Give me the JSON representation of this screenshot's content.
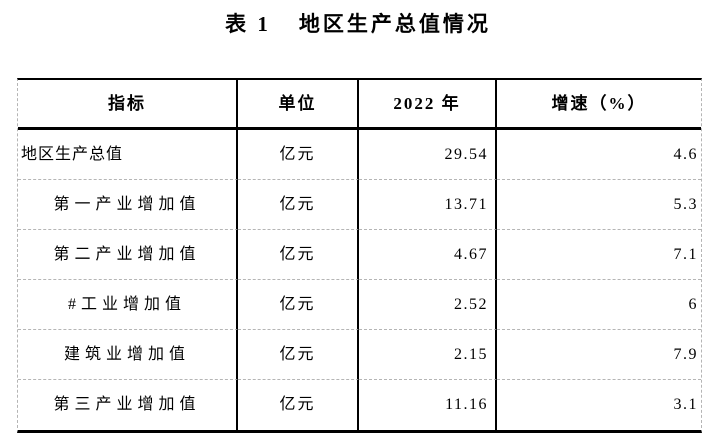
{
  "title": {
    "label": "表 1",
    "text": "地区生产总值情况"
  },
  "table": {
    "headers": [
      "指标",
      "单位",
      "2022 年",
      "增速（%）"
    ],
    "rows": [
      {
        "indicator": "地区生产总值",
        "unit": "亿元",
        "year_2022": "29.54",
        "growth": "4.6"
      },
      {
        "indicator": "第一产业增加值",
        "unit": "亿元",
        "year_2022": "13.71",
        "growth": "5.3"
      },
      {
        "indicator": "第二产业增加值",
        "unit": "亿元",
        "year_2022": "4.67",
        "growth": "7.1"
      },
      {
        "indicator": "#工业增加值",
        "unit": "亿元",
        "year_2022": "2.52",
        "growth": "6"
      },
      {
        "indicator": "建筑业增加值",
        "unit": "亿元",
        "year_2022": "2.15",
        "growth": "7.9"
      },
      {
        "indicator": "第三产业增加值",
        "unit": "亿元",
        "year_2022": "11.16",
        "growth": "3.1"
      }
    ]
  }
}
